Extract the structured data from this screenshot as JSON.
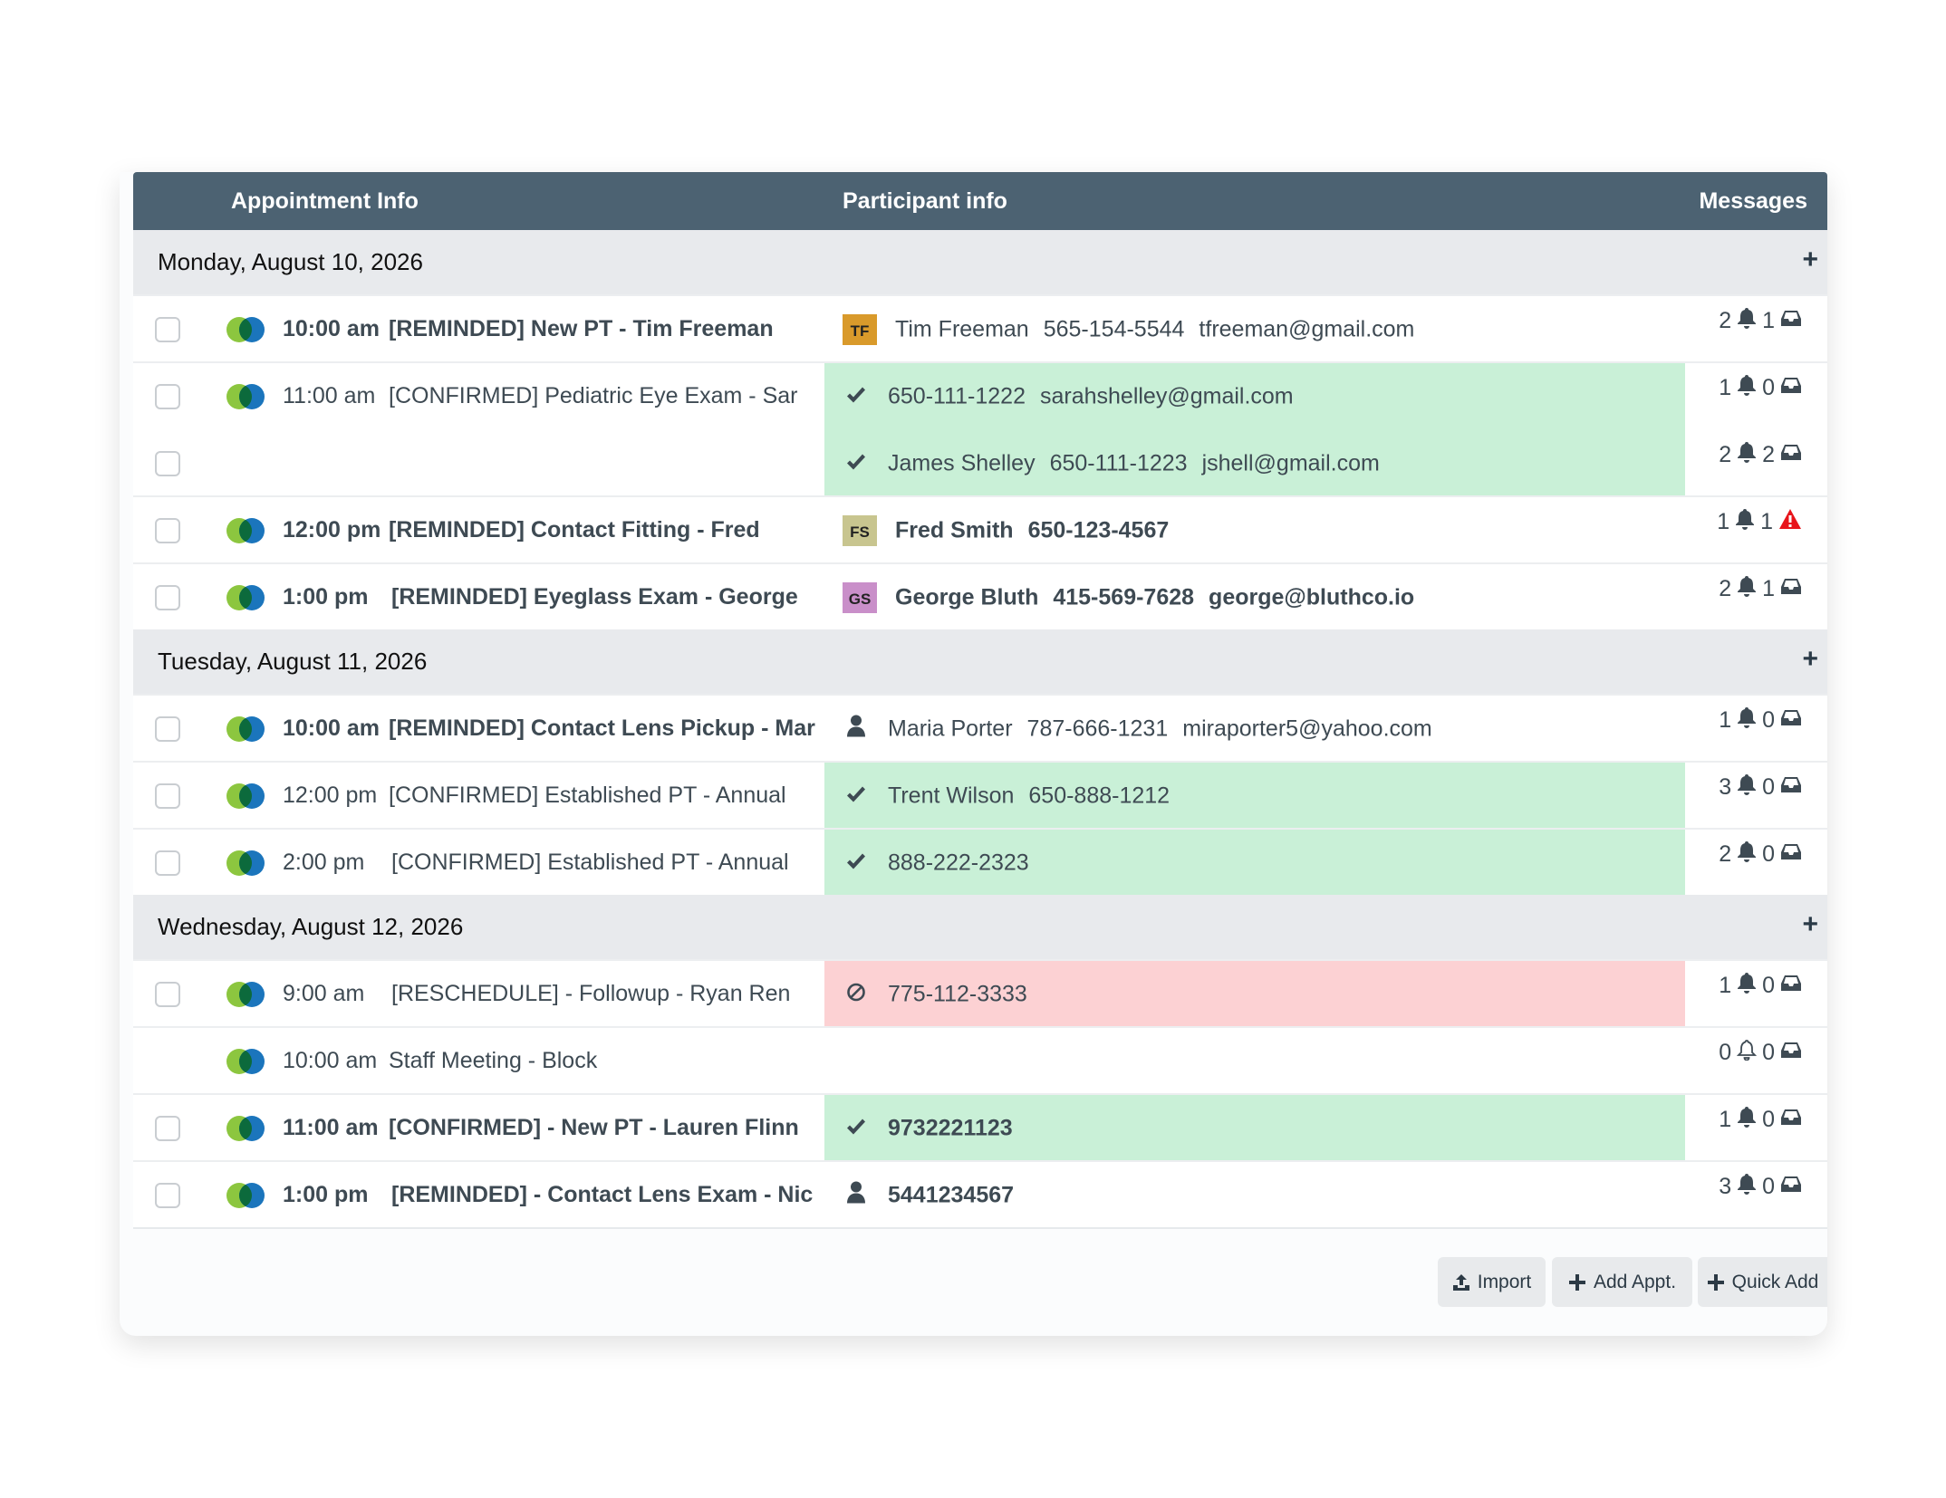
{
  "header": {
    "appointment_info": "Appointment Info",
    "participant_info": "Participant info",
    "messages": "Messages"
  },
  "colors": {
    "header_bg": "#4c6272",
    "confirmed_bg": "#c9f0d7",
    "reschedule_bg": "#fcd1d3",
    "warning": "#e8141b"
  },
  "days": [
    {
      "label": "Monday, August 10, 2026",
      "rows": [
        {
          "time": "10:00 am",
          "title": "[REMINDED] New PT - Tim Freeman",
          "bold": true,
          "bg": "",
          "lines": [
            {
              "checkbox": true,
              "icon": "avatar",
              "avatar": "TF",
              "avatar_color": "#d99a2b",
              "bold": false,
              "fields": [
                "Tim Freeman",
                "565-154-5544",
                "tfreeman@gmail.com"
              ],
              "reminders": "2",
              "messages": "1",
              "msg_icon": "inbox-icon"
            }
          ]
        },
        {
          "time": "11:00 am",
          "title": "[CONFIRMED] Pediatric Eye Exam - Sar",
          "bold": false,
          "bg": "green",
          "lines": [
            {
              "checkbox": true,
              "icon": "check-icon",
              "bold": false,
              "fields": [
                "650-111-1222",
                "sarahshelley@gmail.com"
              ],
              "reminders": "1",
              "messages": "0",
              "msg_icon": "inbox-icon"
            },
            {
              "checkbox": true,
              "icon": "check-icon",
              "bold": false,
              "fields": [
                "James Shelley",
                "650-111-1223",
                "jshell@gmail.com"
              ],
              "reminders": "2",
              "messages": "2",
              "msg_icon": "inbox-icon"
            }
          ]
        },
        {
          "time": "12:00 pm",
          "title": "[REMINDED] Contact Fitting - Fred",
          "bold": true,
          "bg": "",
          "lines": [
            {
              "checkbox": true,
              "icon": "avatar",
              "avatar": "FS",
              "avatar_color": "#c8c58f",
              "bold": true,
              "fields": [
                "Fred Smith",
                "650-123-4567"
              ],
              "reminders": "1",
              "messages": "1",
              "msg_icon": "warning-icon"
            }
          ]
        },
        {
          "time": "1:00 pm",
          "title": "[REMINDED] Eyeglass Exam - George",
          "bold": true,
          "bg": "",
          "lines": [
            {
              "checkbox": true,
              "icon": "avatar",
              "avatar": "GS",
              "avatar_color": "#c98fc9",
              "bold": true,
              "fields": [
                "George Bluth",
                "415-569-7628",
                "george@bluthco.io"
              ],
              "reminders": "2",
              "messages": "1",
              "msg_icon": "inbox-icon"
            }
          ]
        }
      ]
    },
    {
      "label": "Tuesday, August 11, 2026",
      "rows": [
        {
          "time": "10:00 am",
          "title": "[REMINDED] Contact Lens Pickup - Mar",
          "bold": true,
          "bg": "",
          "lines": [
            {
              "checkbox": true,
              "icon": "user-icon",
              "bold": false,
              "fields": [
                "Maria Porter",
                "787-666-1231",
                "miraporter5@yahoo.com"
              ],
              "reminders": "1",
              "messages": "0",
              "msg_icon": "inbox-icon"
            }
          ]
        },
        {
          "time": "12:00 pm",
          "title": "[CONFIRMED] Established PT - Annual",
          "bold": false,
          "bg": "green",
          "lines": [
            {
              "checkbox": true,
              "icon": "check-icon",
              "bold": false,
              "fields": [
                "Trent Wilson",
                "650-888-1212"
              ],
              "reminders": "3",
              "messages": "0",
              "msg_icon": "inbox-icon"
            }
          ]
        },
        {
          "time": "2:00 pm",
          "title": "[CONFIRMED] Established PT - Annual",
          "bold": false,
          "bg": "green",
          "lines": [
            {
              "checkbox": true,
              "icon": "check-icon",
              "bold": false,
              "fields": [
                "888-222-2323"
              ],
              "reminders": "2",
              "messages": "0",
              "msg_icon": "inbox-icon"
            }
          ]
        }
      ]
    },
    {
      "label": "Wednesday, August 12, 2026",
      "rows": [
        {
          "time": "9:00 am",
          "title": "[RESCHEDULE] - Followup - Ryan Ren",
          "bold": false,
          "bg": "red",
          "lines": [
            {
              "checkbox": true,
              "icon": "ban-icon",
              "bold": false,
              "fields": [
                "775-112-3333"
              ],
              "reminders": "1",
              "messages": "0",
              "msg_icon": "inbox-icon"
            }
          ]
        },
        {
          "time": "10:00 am",
          "title": "Staff Meeting - Block",
          "bold": false,
          "bg": "",
          "lines": [
            {
              "checkbox": false,
              "icon": "",
              "bold": false,
              "fields": [],
              "reminders": "0",
              "messages": "0",
              "msg_icon": "inbox-icon",
              "bell_outline": true
            }
          ]
        },
        {
          "time": "11:00 am",
          "title": "[CONFIRMED] - New PT - Lauren Flinn",
          "bold": true,
          "bg": "green",
          "lines": [
            {
              "checkbox": true,
              "icon": "check-icon",
              "bold": true,
              "fields": [
                "9732221123"
              ],
              "reminders": "1",
              "messages": "0",
              "msg_icon": "inbox-icon"
            }
          ]
        },
        {
          "time": "1:00 pm",
          "title": "[REMINDED] - Contact Lens Exam - Nic",
          "bold": true,
          "bg": "",
          "lines": [
            {
              "checkbox": true,
              "icon": "user-icon",
              "bold": true,
              "fields": [
                "5441234567"
              ],
              "reminders": "3",
              "messages": "0",
              "msg_icon": "inbox-icon"
            }
          ]
        }
      ]
    }
  ],
  "actions": {
    "import": "Import",
    "add_appt": "Add Appt.",
    "quick_add": "Quick Add"
  }
}
